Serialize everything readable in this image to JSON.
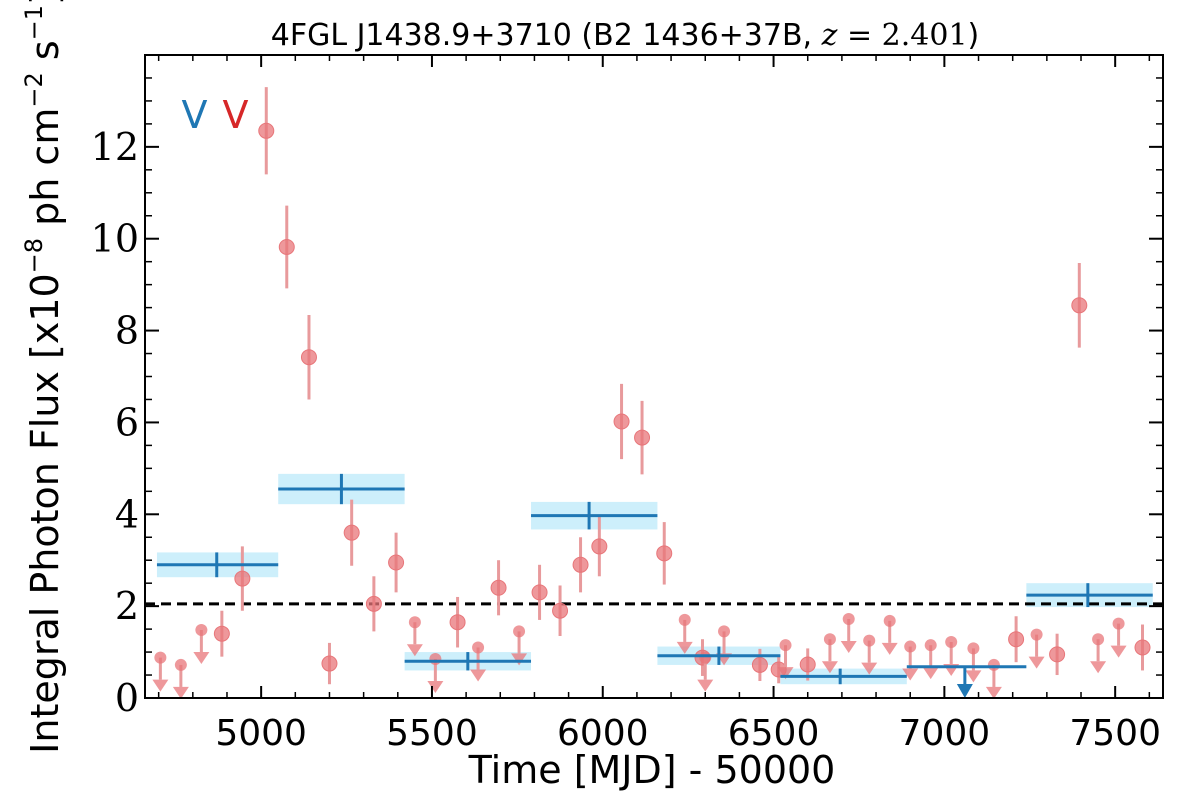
{
  "chart_data": {
    "type": "scatter",
    "title_main": "4FGL J1438.9+3710 (B2 1436+37B, ",
    "title_math_var": "z",
    "title_math_rest": " = 2.401",
    "title_close": ")",
    "xlabel": "Time [MJD] - 50000",
    "ylabel_prefix": "Integral Photon Flux [x10",
    "ylabel_exp": "−8",
    "ylabel_mid": " ph cm",
    "ylabel_exp2": "−2",
    "ylabel_mid2": " s",
    "ylabel_exp3": "−1",
    "ylabel_suffix": "]",
    "xlim": [
      4660,
      7640
    ],
    "ylim": [
      0,
      14
    ],
    "xticks": [
      5000,
      5500,
      6000,
      6500,
      7000,
      7500
    ],
    "yticks": [
      0,
      2,
      4,
      6,
      8,
      10,
      12
    ],
    "grid": false,
    "markers_v": [
      {
        "label": "V",
        "color": "#1f77b4",
        "x": 4805
      },
      {
        "label": "V",
        "color": "#d62728",
        "x": 4925
      }
    ],
    "baseline": 2.05,
    "bins": [
      {
        "x0": 4695,
        "x1": 5050,
        "y": 2.9,
        "err": 0.27,
        "xc": 4870
      },
      {
        "x0": 5050,
        "x1": 5420,
        "y": 4.55,
        "err": 0.33,
        "xc": 5235
      },
      {
        "x0": 5420,
        "x1": 5790,
        "y": 0.8,
        "err": 0.2,
        "xc": 5605
      },
      {
        "x0": 5790,
        "x1": 6160,
        "y": 3.97,
        "err": 0.3,
        "xc": 5960
      },
      {
        "x0": 6160,
        "x1": 6520,
        "y": 0.92,
        "err": 0.2,
        "xc": 6340
      },
      {
        "x0": 6520,
        "x1": 6890,
        "y": 0.47,
        "err": 0.17,
        "xc": 6695
      },
      {
        "x0": 6890,
        "x1": 7240,
        "y": 0.68,
        "err": 0,
        "xc": 7060,
        "upper_limit": true
      },
      {
        "x0": 7240,
        "x1": 7610,
        "y": 2.24,
        "err": 0.26,
        "xc": 7420
      }
    ],
    "points": [
      {
        "x": 5015,
        "y": 12.35,
        "err": 0.95
      },
      {
        "x": 5075,
        "y": 9.82,
        "err": 0.9
      },
      {
        "x": 5140,
        "y": 7.42,
        "err": 0.92
      },
      {
        "x": 4945,
        "y": 2.6,
        "err": 0.7
      },
      {
        "x": 4885,
        "y": 1.4,
        "err": 0.5
      },
      {
        "x": 5200,
        "y": 0.75,
        "err": 0.45
      },
      {
        "x": 5265,
        "y": 3.6,
        "err": 0.72
      },
      {
        "x": 5330,
        "y": 2.05,
        "err": 0.6
      },
      {
        "x": 5395,
        "y": 2.95,
        "err": 0.65
      },
      {
        "x": 5575,
        "y": 1.65,
        "err": 0.55
      },
      {
        "x": 5695,
        "y": 2.4,
        "err": 0.6
      },
      {
        "x": 5815,
        "y": 2.3,
        "err": 0.6
      },
      {
        "x": 5875,
        "y": 1.9,
        "err": 0.55
      },
      {
        "x": 5935,
        "y": 2.9,
        "err": 0.6
      },
      {
        "x": 5990,
        "y": 3.3,
        "err": 0.65
      },
      {
        "x": 6055,
        "y": 6.02,
        "err": 0.82
      },
      {
        "x": 6115,
        "y": 5.67,
        "err": 0.8
      },
      {
        "x": 6180,
        "y": 3.15,
        "err": 0.68
      },
      {
        "x": 6600,
        "y": 0.73,
        "err": 0.35
      },
      {
        "x": 6460,
        "y": 0.72,
        "err": 0.35
      },
      {
        "x": 6515,
        "y": 0.62,
        "err": 0.3
      },
      {
        "x": 7210,
        "y": 1.28,
        "err": 0.5
      },
      {
        "x": 7330,
        "y": 0.95,
        "err": 0.45
      },
      {
        "x": 7395,
        "y": 8.55,
        "err": 0.92
      },
      {
        "x": 7580,
        "y": 1.1,
        "err": 0.5
      },
      {
        "x": 6292,
        "y": 0.88,
        "err": 0.4
      }
    ],
    "upper_limits": [
      {
        "x": 4705,
        "y": 0.88
      },
      {
        "x": 4765,
        "y": 0.72
      },
      {
        "x": 4825,
        "y": 1.48
      },
      {
        "x": 5450,
        "y": 1.65
      },
      {
        "x": 5510,
        "y": 0.85
      },
      {
        "x": 5635,
        "y": 1.1
      },
      {
        "x": 5755,
        "y": 1.45
      },
      {
        "x": 6240,
        "y": 1.7
      },
      {
        "x": 6300,
        "y": 0.88
      },
      {
        "x": 6355,
        "y": 1.45
      },
      {
        "x": 6535,
        "y": 1.15
      },
      {
        "x": 6665,
        "y": 1.28
      },
      {
        "x": 6720,
        "y": 1.72
      },
      {
        "x": 6780,
        "y": 1.25
      },
      {
        "x": 6840,
        "y": 1.68
      },
      {
        "x": 6900,
        "y": 1.12
      },
      {
        "x": 6960,
        "y": 1.15
      },
      {
        "x": 7020,
        "y": 1.22
      },
      {
        "x": 7085,
        "y": 1.08
      },
      {
        "x": 7145,
        "y": 0.72
      },
      {
        "x": 7270,
        "y": 1.38
      },
      {
        "x": 7450,
        "y": 1.28
      },
      {
        "x": 7510,
        "y": 1.62
      }
    ],
    "colors": {
      "points": "#e8767a",
      "points_err": "#e89a9c",
      "bin_line": "#1f77b4",
      "bin_fill": "#cdeffb",
      "baseline": "#000000"
    }
  }
}
